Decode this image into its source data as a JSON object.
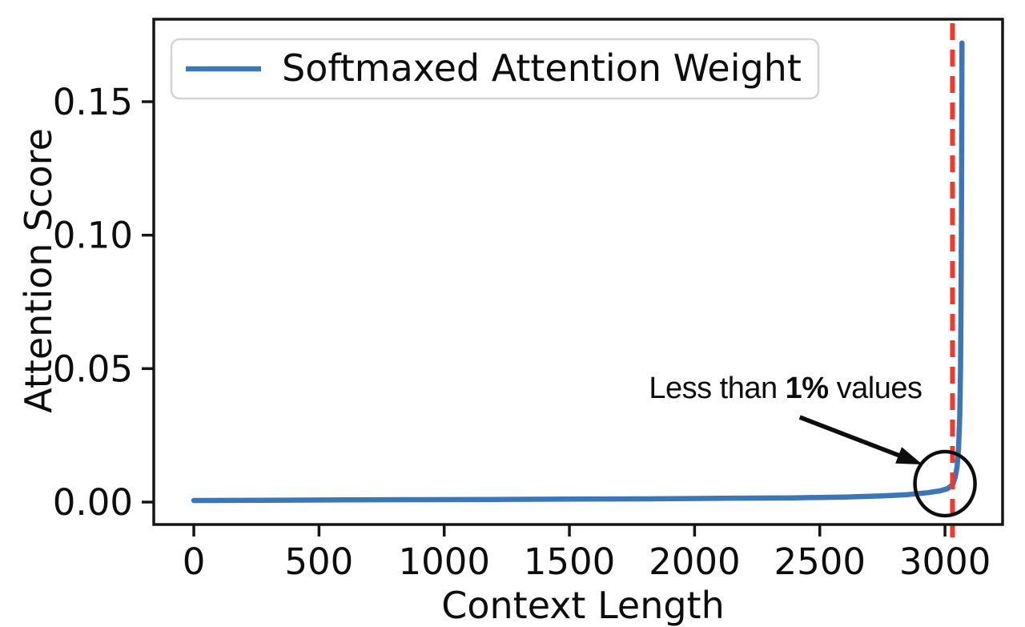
{
  "chart_data": {
    "type": "line",
    "title": "",
    "xlabel": "Context Length",
    "ylabel": "Attention Score",
    "xlim": [
      -160,
      3230
    ],
    "ylim": [
      -0.0084,
      0.1809
    ],
    "grid": false,
    "x_ticks": [
      0,
      500,
      1000,
      1500,
      2000,
      2500,
      3000
    ],
    "x_tick_labels": [
      "0",
      "500",
      "1000",
      "1500",
      "2000",
      "2500",
      "3000"
    ],
    "y_ticks": [
      0.0,
      0.05,
      0.1,
      0.15
    ],
    "y_tick_labels": [
      "0.00",
      "0.05",
      "0.10",
      "0.15"
    ],
    "legend": {
      "position": "upper left",
      "entries": [
        {
          "label": "Softmaxed Attention Weight",
          "color": "#3d76b4"
        }
      ]
    },
    "series": [
      {
        "name": "Softmaxed Attention Weight",
        "color": "#3d76b4",
        "points": [
          [
            0,
            0.0006
          ],
          [
            300,
            0.0007
          ],
          [
            600,
            0.0008
          ],
          [
            900,
            0.0009
          ],
          [
            1200,
            0.001
          ],
          [
            1500,
            0.0011
          ],
          [
            1800,
            0.0012
          ],
          [
            2100,
            0.0014
          ],
          [
            2400,
            0.0016
          ],
          [
            2600,
            0.0019
          ],
          [
            2750,
            0.0023
          ],
          [
            2850,
            0.0028
          ],
          [
            2930,
            0.0035
          ],
          [
            2980,
            0.0042
          ],
          [
            3010,
            0.005
          ],
          [
            3030,
            0.0065
          ],
          [
            3040,
            0.009
          ],
          [
            3048,
            0.013
          ],
          [
            3054,
            0.02
          ],
          [
            3059,
            0.032
          ],
          [
            3062,
            0.05
          ],
          [
            3064,
            0.075
          ],
          [
            3066,
            0.11
          ],
          [
            3067,
            0.14
          ],
          [
            3068,
            0.172
          ]
        ]
      }
    ],
    "vline": {
      "x": 3030,
      "color": "#ee3a2c",
      "style": "dashed"
    },
    "annotation": {
      "parts": [
        {
          "text": "Less than ",
          "bold": false
        },
        {
          "text": "1%",
          "bold": true
        },
        {
          "text": " values",
          "bold": false
        }
      ],
      "text_center": [
        2363,
        0.039
      ],
      "arrow_from": [
        2420,
        0.0318
      ],
      "arrow_to": [
        2910,
        0.0141
      ],
      "circle_center": [
        3000,
        0.0069
      ],
      "circle_rx": 120,
      "circle_ry": 0.012,
      "color": "#0d0d0d"
    }
  }
}
